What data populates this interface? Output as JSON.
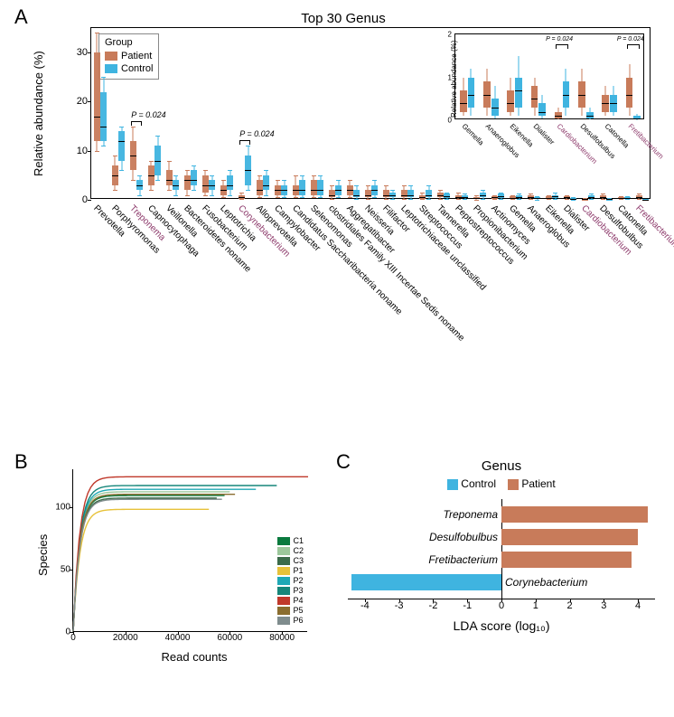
{
  "colors": {
    "patient": "#c87b5a",
    "control": "#3fb4e0",
    "black": "#000000",
    "highlight_text": "#8d3a6b"
  },
  "panelA": {
    "label": "A",
    "title": "Top 30  Genus",
    "ylabel": "Relative abundance (%)",
    "ylim": [
      0,
      35
    ],
    "yticks": [
      0,
      10,
      20,
      30
    ],
    "legend": {
      "title": "Group",
      "items": [
        {
          "label": "Patient",
          "color": "#c87b5a"
        },
        {
          "label": "Control",
          "color": "#3fb4e0"
        }
      ]
    },
    "pvals": [
      {
        "indices": [
          2
        ],
        "text": "P = 0.024"
      },
      {
        "indices": [
          8
        ],
        "text": "P = 0.024"
      }
    ],
    "genera": [
      {
        "name": "Prevotella",
        "hl": false,
        "p": {
          "q1": 12,
          "med": 17,
          "q3": 30,
          "lo": 10,
          "hi": 34
        },
        "c": {
          "q1": 12,
          "med": 15,
          "q3": 22,
          "lo": 11,
          "hi": 25
        }
      },
      {
        "name": "Porphyromonas",
        "hl": false,
        "p": {
          "q1": 3,
          "med": 5,
          "q3": 7,
          "lo": 2,
          "hi": 9
        },
        "c": {
          "q1": 8,
          "med": 12,
          "q3": 14,
          "lo": 6,
          "hi": 15
        }
      },
      {
        "name": "Treponema",
        "hl": true,
        "p": {
          "q1": 6,
          "med": 9,
          "q3": 12,
          "lo": 4,
          "hi": 15
        },
        "c": {
          "q1": 2,
          "med": 3,
          "q3": 4,
          "lo": 1,
          "hi": 5
        }
      },
      {
        "name": "Capnocytophaga",
        "hl": false,
        "p": {
          "q1": 3,
          "med": 5,
          "q3": 7,
          "lo": 2,
          "hi": 8
        },
        "c": {
          "q1": 5,
          "med": 8,
          "q3": 11,
          "lo": 4,
          "hi": 13
        }
      },
      {
        "name": "Veillonella",
        "hl": false,
        "p": {
          "q1": 3,
          "med": 4,
          "q3": 6,
          "lo": 2,
          "hi": 8
        },
        "c": {
          "q1": 2,
          "med": 3,
          "q3": 4,
          "lo": 1,
          "hi": 5
        }
      },
      {
        "name": "Bacteroidetes noname",
        "hl": false,
        "p": {
          "q1": 2,
          "med": 4,
          "q3": 5,
          "lo": 1,
          "hi": 6
        },
        "c": {
          "q1": 3,
          "med": 4,
          "q3": 6,
          "lo": 2,
          "hi": 7
        }
      },
      {
        "name": "Fusobacterium",
        "hl": false,
        "p": {
          "q1": 1.5,
          "med": 3,
          "q3": 5,
          "lo": 1,
          "hi": 6
        },
        "c": {
          "q1": 2,
          "med": 3,
          "q3": 4,
          "lo": 1,
          "hi": 5
        }
      },
      {
        "name": "Leptotrichia",
        "hl": false,
        "p": {
          "q1": 1,
          "med": 2,
          "q3": 3,
          "lo": 0.5,
          "hi": 4
        },
        "c": {
          "q1": 2,
          "med": 3,
          "q3": 5,
          "lo": 1,
          "hi": 6
        }
      },
      {
        "name": "Corynebacterium",
        "hl": true,
        "p": {
          "q1": 0.2,
          "med": 0.5,
          "q3": 1,
          "lo": 0.1,
          "hi": 1.5
        },
        "c": {
          "q1": 3,
          "med": 6,
          "q3": 9,
          "lo": 2,
          "hi": 11
        }
      },
      {
        "name": "Alloprevotella",
        "hl": false,
        "p": {
          "q1": 1,
          "med": 2,
          "q3": 4,
          "lo": 0.5,
          "hi": 5
        },
        "c": {
          "q1": 2,
          "med": 3,
          "q3": 5,
          "lo": 1,
          "hi": 6
        }
      },
      {
        "name": "Campylobacter",
        "hl": false,
        "p": {
          "q1": 1,
          "med": 2,
          "q3": 3,
          "lo": 0.5,
          "hi": 4
        },
        "c": {
          "q1": 1,
          "med": 2,
          "q3": 3,
          "lo": 0.5,
          "hi": 4
        }
      },
      {
        "name": "Candidatus Saccharibacteria noname",
        "hl": false,
        "p": {
          "q1": 1,
          "med": 2,
          "q3": 3,
          "lo": 0.5,
          "hi": 5
        },
        "c": {
          "q1": 1,
          "med": 2,
          "q3": 4,
          "lo": 0.5,
          "hi": 5
        }
      },
      {
        "name": "Selenomonas",
        "hl": false,
        "p": {
          "q1": 1,
          "med": 2,
          "q3": 4,
          "lo": 0.5,
          "hi": 5
        },
        "c": {
          "q1": 1,
          "med": 2,
          "q3": 4,
          "lo": 0.5,
          "hi": 5
        }
      },
      {
        "name": "clostridiales Family XIII Incertae Sedis noname",
        "hl": false,
        "p": {
          "q1": 0.5,
          "med": 1,
          "q3": 2,
          "lo": 0.2,
          "hi": 3
        },
        "c": {
          "q1": 1,
          "med": 2,
          "q3": 3,
          "lo": 0.5,
          "hi": 4
        }
      },
      {
        "name": "Aggregatibacter",
        "hl": false,
        "p": {
          "q1": 1,
          "med": 2,
          "q3": 3,
          "lo": 0.5,
          "hi": 4
        },
        "c": {
          "q1": 0.5,
          "med": 1,
          "q3": 2,
          "lo": 0.2,
          "hi": 3
        }
      },
      {
        "name": "Neisseria",
        "hl": false,
        "p": {
          "q1": 0.5,
          "med": 1,
          "q3": 2,
          "lo": 0.2,
          "hi": 3
        },
        "c": {
          "q1": 1,
          "med": 2,
          "q3": 3,
          "lo": 0.5,
          "hi": 4
        }
      },
      {
        "name": "Filifactor",
        "hl": false,
        "p": {
          "q1": 0.5,
          "med": 1,
          "q3": 2,
          "lo": 0.2,
          "hi": 3
        },
        "c": {
          "q1": 0.5,
          "med": 1,
          "q3": 1.5,
          "lo": 0.2,
          "hi": 2
        }
      },
      {
        "name": "Leptotrichiaceae unclassified",
        "hl": false,
        "p": {
          "q1": 0.5,
          "med": 1,
          "q3": 2,
          "lo": 0.2,
          "hi": 3
        },
        "c": {
          "q1": 0.5,
          "med": 1,
          "q3": 2,
          "lo": 0.2,
          "hi": 3
        }
      },
      {
        "name": "Streptococcus",
        "hl": false,
        "p": {
          "q1": 0.2,
          "med": 0.5,
          "q3": 1,
          "lo": 0.1,
          "hi": 1.5
        },
        "c": {
          "q1": 0.5,
          "med": 1,
          "q3": 2,
          "lo": 0.2,
          "hi": 3
        }
      },
      {
        "name": "Tannerella",
        "hl": false,
        "p": {
          "q1": 0.5,
          "med": 1,
          "q3": 1.5,
          "lo": 0.2,
          "hi": 2
        },
        "c": {
          "q1": 0.3,
          "med": 0.7,
          "q3": 1.2,
          "lo": 0.1,
          "hi": 1.5
        }
      },
      {
        "name": "Peptostreptococcus",
        "hl": false,
        "p": {
          "q1": 0.3,
          "med": 0.6,
          "q3": 1,
          "lo": 0.1,
          "hi": 1.5
        },
        "c": {
          "q1": 0.3,
          "med": 0.6,
          "q3": 1,
          "lo": 0.1,
          "hi": 1.2
        }
      },
      {
        "name": "Propionibacterium",
        "hl": false,
        "p": {
          "q1": 0.1,
          "med": 0.3,
          "q3": 0.6,
          "lo": 0.05,
          "hi": 1
        },
        "c": {
          "q1": 0.5,
          "med": 1,
          "q3": 1.5,
          "lo": 0.2,
          "hi": 2
        }
      },
      {
        "name": "Actinomyces",
        "hl": false,
        "p": {
          "q1": 0.2,
          "med": 0.5,
          "q3": 0.8,
          "lo": 0.1,
          "hi": 1
        },
        "c": {
          "q1": 0.4,
          "med": 0.8,
          "q3": 1.2,
          "lo": 0.2,
          "hi": 1.5
        }
      },
      {
        "name": "Gemella",
        "hl": false,
        "p": {
          "q1": 0.2,
          "med": 0.4,
          "q3": 0.7,
          "lo": 0.1,
          "hi": 1
        },
        "c": {
          "q1": 0.3,
          "med": 0.6,
          "q3": 1,
          "lo": 0.1,
          "hi": 1.2
        }
      },
      {
        "name": "Anaeroglobus",
        "hl": false,
        "p": {
          "q1": 0.3,
          "med": 0.6,
          "q3": 0.9,
          "lo": 0.1,
          "hi": 1.2
        },
        "c": {
          "q1": 0.1,
          "med": 0.3,
          "q3": 0.5,
          "lo": 0.05,
          "hi": 0.8
        }
      },
      {
        "name": "Eikenella",
        "hl": false,
        "p": {
          "q1": 0.2,
          "med": 0.4,
          "q3": 0.7,
          "lo": 0.1,
          "hi": 1
        },
        "c": {
          "q1": 0.3,
          "med": 0.7,
          "q3": 1,
          "lo": 0.1,
          "hi": 1.5
        }
      },
      {
        "name": "Dialister",
        "hl": false,
        "p": {
          "q1": 0.3,
          "med": 0.5,
          "q3": 0.8,
          "lo": 0.1,
          "hi": 1
        },
        "c": {
          "q1": 0.1,
          "med": 0.2,
          "q3": 0.4,
          "lo": 0.05,
          "hi": 0.6
        }
      },
      {
        "name": "Cardiobacterium",
        "hl": true,
        "p": {
          "q1": 0.05,
          "med": 0.1,
          "q3": 0.2,
          "lo": 0.02,
          "hi": 0.3
        },
        "c": {
          "q1": 0.3,
          "med": 0.6,
          "q3": 0.9,
          "lo": 0.1,
          "hi": 1.2
        }
      },
      {
        "name": "Desulfobulbus",
        "hl": false,
        "p": {
          "q1": 0.3,
          "med": 0.6,
          "q3": 0.9,
          "lo": 0.1,
          "hi": 1.2
        },
        "c": {
          "q1": 0.05,
          "med": 0.1,
          "q3": 0.2,
          "lo": 0.02,
          "hi": 0.3
        }
      },
      {
        "name": "Catonella",
        "hl": false,
        "p": {
          "q1": 0.2,
          "med": 0.4,
          "q3": 0.6,
          "lo": 0.1,
          "hi": 0.8
        },
        "c": {
          "q1": 0.2,
          "med": 0.4,
          "q3": 0.6,
          "lo": 0.1,
          "hi": 0.8
        }
      },
      {
        "name": "Fretibacterium",
        "hl": true,
        "p": {
          "q1": 0.3,
          "med": 0.6,
          "q3": 1,
          "lo": 0.1,
          "hi": 1.3
        },
        "c": {
          "q1": 0.02,
          "med": 0.05,
          "q3": 0.1,
          "lo": 0.01,
          "hi": 0.15
        }
      }
    ],
    "inset": {
      "ylabel": "Relative abundance (%)",
      "ylim": [
        0,
        2
      ],
      "yticks": [
        0,
        1,
        2
      ],
      "pvals": [
        {
          "indices": [
            4
          ],
          "text": "P = 0.024"
        },
        {
          "indices": [
            7
          ],
          "text": "P = 0.024"
        }
      ],
      "genera_indices": [
        23,
        24,
        25,
        26,
        27,
        28,
        29,
        30
      ]
    }
  },
  "panelB": {
    "label": "B",
    "ylabel": "Species",
    "xlabel": "Read counts",
    "xlim": [
      0,
      90000
    ],
    "ylim": [
      0,
      130
    ],
    "xticks": [
      0,
      20000,
      40000,
      60000,
      80000
    ],
    "yticks": [
      0,
      50,
      100
    ],
    "curves": [
      {
        "id": "C1",
        "color": "#0a7a3e",
        "plateau": 109,
        "xmax": 58000
      },
      {
        "id": "C2",
        "color": "#9cc79b",
        "plateau": 112,
        "xmax": 60000
      },
      {
        "id": "C3",
        "color": "#3b6b4a",
        "plateau": 107,
        "xmax": 55000
      },
      {
        "id": "P1",
        "color": "#e7c23a",
        "plateau": 98,
        "xmax": 52000
      },
      {
        "id": "P2",
        "color": "#1fa8b5",
        "plateau": 114,
        "xmax": 70000
      },
      {
        "id": "P3",
        "color": "#17867a",
        "plateau": 117,
        "xmax": 78000
      },
      {
        "id": "P4",
        "color": "#c0392b",
        "plateau": 124,
        "xmax": 90000
      },
      {
        "id": "P5",
        "color": "#8a6d2f",
        "plateau": 110,
        "xmax": 62000
      },
      {
        "id": "P6",
        "color": "#7f8c8d",
        "plateau": 106,
        "xmax": 57000
      }
    ]
  },
  "panelC": {
    "label": "C",
    "title": "Genus",
    "legend": [
      {
        "label": "Control",
        "color": "#3fb4e0"
      },
      {
        "label": "Patient",
        "color": "#c87b5a"
      }
    ],
    "xlabel": "LDA score (log₁₀)",
    "xlim": [
      -4.5,
      4.5
    ],
    "xticks": [
      -4,
      -3,
      -2,
      -1,
      0,
      1,
      2,
      3,
      4
    ],
    "bars": [
      {
        "name": "Treponema",
        "val": 4.3,
        "color": "#c87b5a",
        "side": "right"
      },
      {
        "name": "Desulfobulbus",
        "val": 4.0,
        "color": "#c87b5a",
        "side": "right"
      },
      {
        "name": "Fretibacterium",
        "val": 3.8,
        "color": "#c87b5a",
        "side": "right"
      },
      {
        "name": "Corynebacterium",
        "val": -4.4,
        "color": "#3fb4e0",
        "side": "left"
      }
    ]
  }
}
